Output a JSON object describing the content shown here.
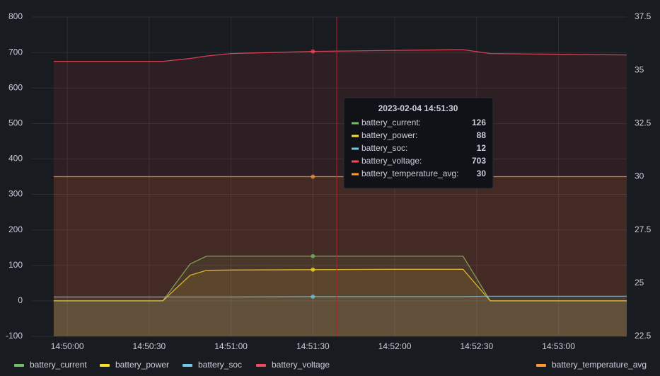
{
  "chart_data": {
    "type": "line",
    "x": [
      "14:49:55",
      "14:50:35",
      "14:50:45",
      "14:50:51",
      "14:51:00",
      "14:51:30",
      "14:52:00",
      "14:52:25",
      "14:52:35",
      "14:53:25"
    ],
    "xlim": [
      "14:49:47",
      "14:53:25"
    ],
    "xticks": [
      "14:50:00",
      "14:50:30",
      "14:51:00",
      "14:51:30",
      "14:52:00",
      "14:52:30",
      "14:53:00"
    ],
    "ylim": [
      -100,
      800
    ],
    "yticks": [
      -100,
      0,
      100,
      200,
      300,
      400,
      500,
      600,
      700,
      800
    ],
    "y2lim": [
      22.5,
      37.5
    ],
    "y2ticks": [
      22.5,
      25,
      27.5,
      30,
      32.5,
      35,
      37.5
    ],
    "grid": true,
    "legend": "bottom",
    "series": [
      {
        "name": "battery_current",
        "color": "#73bf69",
        "values": [
          0,
          0,
          104,
          126,
          126,
          126,
          126,
          126,
          0,
          0
        ]
      },
      {
        "name": "battery_power",
        "color": "#fade2a",
        "values": [
          0,
          0,
          72,
          86,
          87,
          88,
          89,
          89,
          0,
          0
        ]
      },
      {
        "name": "battery_soc",
        "color": "#73c9e3",
        "values": [
          11,
          11,
          11,
          11,
          11,
          12,
          12,
          12,
          13,
          13
        ]
      },
      {
        "name": "battery_voltage",
        "color": "#f2495c",
        "values": [
          675,
          675,
          683,
          690,
          697,
          703,
          706,
          708,
          697,
          693
        ]
      },
      {
        "name": "battery_temperature_avg",
        "color": "#ff9830",
        "axis": "y2",
        "values": [
          30,
          30,
          30,
          30,
          30,
          30,
          30,
          30,
          30,
          30
        ]
      }
    ],
    "tooltip": {
      "title": "2023-02-04 14:51:30",
      "index": 5,
      "labels": [
        "battery_current:",
        "battery_power:",
        "battery_soc:",
        "battery_voltage:",
        "battery_temperature_avg:"
      ]
    }
  }
}
